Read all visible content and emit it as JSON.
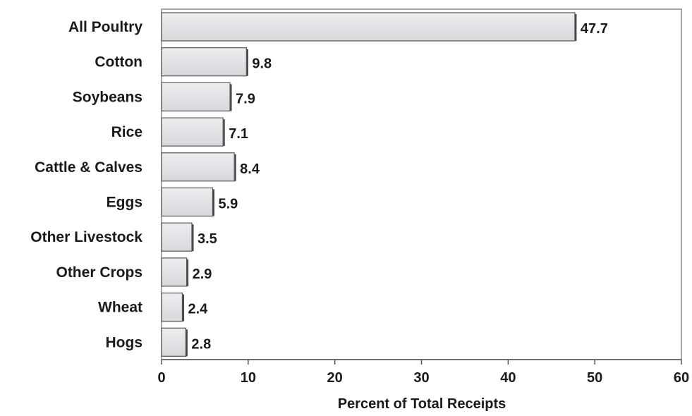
{
  "chart_data": {
    "type": "bar",
    "orientation": "horizontal",
    "categories": [
      "All Poultry",
      "Cotton",
      "Soybeans",
      "Rice",
      "Cattle & Calves",
      "Eggs",
      "Other Livestock",
      "Other Crops",
      "Wheat",
      "Hogs"
    ],
    "values": [
      47.7,
      9.8,
      7.9,
      7.1,
      8.4,
      5.9,
      3.5,
      2.9,
      2.4,
      2.8
    ],
    "value_labels": [
      "47.7",
      "9.8",
      "7.9",
      "7.1",
      "8.4",
      "5.9",
      "3.5",
      "2.9",
      "2.4",
      "2.8"
    ],
    "xlabel": "Percent of Total Receipts",
    "ylabel": "",
    "xlim": [
      0,
      60
    ],
    "xticks": [
      0,
      10,
      20,
      30,
      40,
      50,
      60
    ],
    "xtick_labels": [
      "0",
      "10",
      "20",
      "30",
      "40",
      "50",
      "60"
    ],
    "grid": false,
    "bar_color": "#dfe0e3",
    "bar_edge_color": "#555555",
    "frame_color": "#8a8a8a"
  }
}
